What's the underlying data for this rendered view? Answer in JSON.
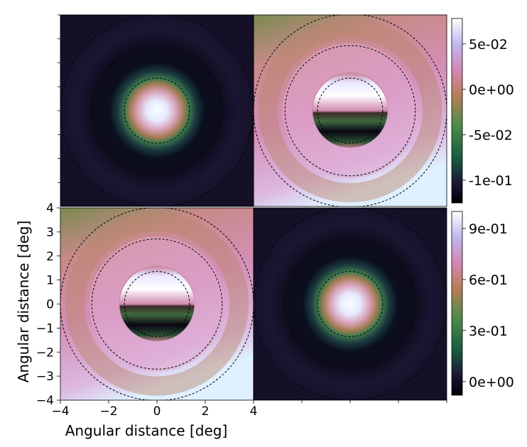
{
  "chart_data": [
    {
      "type": "heatmap",
      "panel": "top-left",
      "colormap": "cubehelix",
      "pattern": "centered-gaussian",
      "contour_radii": [
        1.35,
        2.7,
        4.0
      ],
      "contour_style": "dashed",
      "xlim": [
        -4,
        4
      ],
      "ylim": [
        -4,
        4
      ],
      "shares_colorbar_with": "top-right"
    },
    {
      "type": "heatmap",
      "panel": "top-right",
      "colormap": "cubehelix",
      "pattern": "dipole-with-rings",
      "contour_radii": [
        1.35,
        2.7,
        4.0
      ],
      "contour_style": "dashed",
      "xlim": [
        -4,
        4
      ],
      "ylim": [
        -4,
        4
      ],
      "colorbar": {
        "ticks": [
          "5e-02",
          "0e+00",
          "-5e-02",
          "-1e-01"
        ],
        "tick_values": [
          0.05,
          0.0,
          -0.05,
          -0.1
        ],
        "vmin": -0.125,
        "vmax": 0.078
      }
    },
    {
      "type": "heatmap",
      "panel": "bottom-left",
      "colormap": "cubehelix",
      "pattern": "dipole-with-rings",
      "contour_radii": [
        1.35,
        2.7,
        4.0
      ],
      "contour_style": "dashed",
      "xlim": [
        -4,
        4
      ],
      "ylim": [
        -4,
        4
      ],
      "xlabel": "Angular distance [deg]",
      "ylabel": "Angular distance [deg]",
      "xticks": [
        "−4",
        "−2",
        "0",
        "2",
        "4"
      ],
      "xtick_values": [
        -4,
        -2,
        0,
        2,
        4
      ],
      "yticks": [
        "4",
        "3",
        "2",
        "1",
        "0",
        "−1",
        "−2",
        "−3",
        "−4"
      ],
      "ytick_values": [
        4,
        3,
        2,
        1,
        0,
        -1,
        -2,
        -3,
        -4
      ],
      "shares_colorbar_with": "bottom-right"
    },
    {
      "type": "heatmap",
      "panel": "bottom-right",
      "colormap": "cubehelix",
      "pattern": "centered-gaussian",
      "contour_radii": [
        1.35,
        2.7,
        4.0
      ],
      "contour_style": "dashed",
      "xlim": [
        -4,
        4
      ],
      "ylim": [
        -4,
        4
      ],
      "colorbar": {
        "ticks": [
          "9e-01",
          "6e-01",
          "3e-01",
          "0e+00"
        ],
        "tick_values": [
          0.9,
          0.6,
          0.3,
          0.0
        ],
        "vmin": -0.08,
        "vmax": 1.0
      }
    }
  ]
}
